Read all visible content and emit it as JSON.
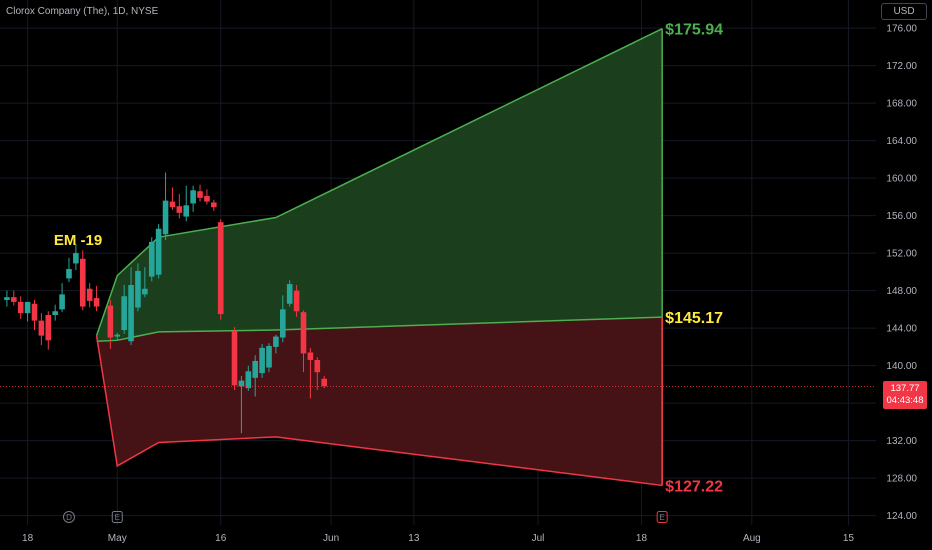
{
  "header": {
    "symbol_line": "Clorox Company (The), 1D, NYSE",
    "currency": "USD"
  },
  "price_tag": {
    "price": "137.77",
    "countdown": "04:43:48"
  },
  "colors": {
    "up": "#26a69a",
    "down": "#f23645",
    "upper_band_fill": "#1e4620",
    "upper_band_line": "#4caf50",
    "lower_band_fill": "#4c1418",
    "lower_band_line": "#f23645",
    "label_yellow": "#ffeb3b",
    "grid": "#161a25"
  },
  "chart_data": {
    "type": "candlestick",
    "y_axis": {
      "min": 123,
      "max": 179,
      "ticks": [
        "124.00",
        "128.00",
        "132.00",
        "136.00",
        "140.00",
        "144.00",
        "148.00",
        "152.00",
        "156.00",
        "160.00",
        "164.00",
        "168.00",
        "172.00",
        "176.00"
      ]
    },
    "x_axis": {
      "ticks": [
        {
          "label": "18",
          "day": -10
        },
        {
          "label": "May",
          "day": 3
        },
        {
          "label": "16",
          "day": 18
        },
        {
          "label": "Jun",
          "day": 34
        },
        {
          "label": "13",
          "day": 46
        },
        {
          "label": "Jul",
          "day": 64
        },
        {
          "label": "18",
          "day": 79
        },
        {
          "label": "Aug",
          "day": 95
        },
        {
          "label": "15",
          "day": 109
        }
      ],
      "day_range": [
        -14,
        113
      ]
    },
    "candles": [
      {
        "day": -13,
        "o": 147.0,
        "h": 148.0,
        "l": 146.3,
        "c": 147.3
      },
      {
        "day": -12,
        "o": 147.3,
        "h": 148.0,
        "l": 146.4,
        "c": 146.8
      },
      {
        "day": -11,
        "o": 146.8,
        "h": 147.4,
        "l": 145.0,
        "c": 145.6
      },
      {
        "day": -10,
        "o": 145.6,
        "h": 146.4,
        "l": 144.7,
        "c": 146.8
      },
      {
        "day": -9,
        "o": 146.6,
        "h": 147.0,
        "l": 143.8,
        "c": 144.8
      },
      {
        "day": -8,
        "o": 144.8,
        "h": 145.6,
        "l": 142.2,
        "c": 143.2
      },
      {
        "day": -7,
        "o": 145.4,
        "h": 145.8,
        "l": 141.7,
        "c": 142.7
      },
      {
        "day": -6,
        "o": 145.4,
        "h": 146.5,
        "l": 144.8,
        "c": 145.8
      },
      {
        "day": -5,
        "o": 146.0,
        "h": 148.8,
        "l": 145.7,
        "c": 147.6
      },
      {
        "day": -4,
        "o": 149.3,
        "h": 151.5,
        "l": 148.9,
        "c": 150.3
      },
      {
        "day": -3,
        "o": 150.9,
        "h": 153.0,
        "l": 150.2,
        "c": 152.0
      },
      {
        "day": -2,
        "o": 151.4,
        "h": 152.3,
        "l": 145.9,
        "c": 146.3
      },
      {
        "day": -1,
        "o": 148.2,
        "h": 148.8,
        "l": 146.2,
        "c": 146.9
      },
      {
        "day": 0,
        "o": 147.2,
        "h": 148.5,
        "l": 145.8,
        "c": 146.3
      },
      {
        "day": 2,
        "o": 146.4,
        "h": 147.0,
        "l": 141.8,
        "c": 143.0
      },
      {
        "day": 3,
        "o": 143.1,
        "h": 143.5,
        "l": 142.7,
        "c": 143.3
      },
      {
        "day": 4,
        "o": 143.8,
        "h": 148.6,
        "l": 143.4,
        "c": 147.4
      },
      {
        "day": 5,
        "o": 142.6,
        "h": 150.5,
        "l": 142.2,
        "c": 148.6
      },
      {
        "day": 6,
        "o": 146.2,
        "h": 150.9,
        "l": 145.8,
        "c": 150.1
      },
      {
        "day": 7,
        "o": 147.6,
        "h": 150.5,
        "l": 147.3,
        "c": 148.2
      },
      {
        "day": 8,
        "o": 149.5,
        "h": 153.7,
        "l": 149.0,
        "c": 153.2
      },
      {
        "day": 9,
        "o": 149.7,
        "h": 155.1,
        "l": 149.3,
        "c": 154.6
      },
      {
        "day": 10,
        "o": 154.0,
        "h": 160.6,
        "l": 153.4,
        "c": 157.6
      },
      {
        "day": 11,
        "o": 157.5,
        "h": 159.0,
        "l": 156.6,
        "c": 156.9
      },
      {
        "day": 12,
        "o": 157.0,
        "h": 158.3,
        "l": 155.7,
        "c": 156.3
      },
      {
        "day": 13,
        "o": 155.9,
        "h": 159.2,
        "l": 155.4,
        "c": 157.1
      },
      {
        "day": 14,
        "o": 157.3,
        "h": 159.2,
        "l": 156.4,
        "c": 158.7
      },
      {
        "day": 15,
        "o": 158.6,
        "h": 159.3,
        "l": 157.5,
        "c": 157.9
      },
      {
        "day": 16,
        "o": 158.1,
        "h": 158.8,
        "l": 157.2,
        "c": 157.5
      },
      {
        "day": 17,
        "o": 157.4,
        "h": 157.7,
        "l": 156.5,
        "c": 156.9
      },
      {
        "day": 18,
        "o": 155.3,
        "h": 155.6,
        "l": 144.9,
        "c": 145.5
      },
      {
        "day": 20,
        "o": 143.7,
        "h": 144.1,
        "l": 137.4,
        "c": 137.9
      },
      {
        "day": 21,
        "o": 137.8,
        "h": 138.9,
        "l": 132.8,
        "c": 138.4
      },
      {
        "day": 22,
        "o": 137.6,
        "h": 140.0,
        "l": 137.3,
        "c": 139.4
      },
      {
        "day": 23,
        "o": 138.7,
        "h": 141.1,
        "l": 136.7,
        "c": 140.5
      },
      {
        "day": 24,
        "o": 139.2,
        "h": 142.3,
        "l": 138.7,
        "c": 141.9
      },
      {
        "day": 25,
        "o": 139.8,
        "h": 142.4,
        "l": 139.3,
        "c": 142.1
      },
      {
        "day": 26,
        "o": 142.0,
        "h": 143.3,
        "l": 141.3,
        "c": 143.1
      },
      {
        "day": 27,
        "o": 143.0,
        "h": 147.5,
        "l": 142.5,
        "c": 146.0
      },
      {
        "day": 28,
        "o": 146.6,
        "h": 149.1,
        "l": 146.3,
        "c": 148.7
      },
      {
        "day": 29,
        "o": 148.0,
        "h": 148.6,
        "l": 145.2,
        "c": 145.8
      },
      {
        "day": 30,
        "o": 145.7,
        "h": 145.9,
        "l": 139.3,
        "c": 141.3
      },
      {
        "day": 31,
        "o": 141.4,
        "h": 141.9,
        "l": 136.5,
        "c": 140.6
      },
      {
        "day": 32,
        "o": 140.6,
        "h": 140.9,
        "l": 137.4,
        "c": 139.3
      },
      {
        "day": 33,
        "o": 138.6,
        "h": 138.9,
        "l": 137.6,
        "c": 137.8
      }
    ],
    "last_price": 137.77,
    "bands": {
      "upper": {
        "days": [
          0,
          3,
          9,
          26,
          82
        ],
        "values": [
          143.2,
          149.6,
          153.7,
          155.8,
          175.94
        ]
      },
      "mid": {
        "days": [
          0,
          3,
          9,
          26,
          82
        ],
        "values": [
          142.6,
          142.7,
          143.6,
          143.8,
          145.17
        ]
      },
      "lower": {
        "days": [
          0,
          3,
          9,
          26,
          82
        ],
        "values": [
          143.2,
          129.3,
          131.8,
          132.4,
          127.22
        ]
      }
    },
    "annotations": [
      {
        "text": "EM -19",
        "day": -3,
        "y": 153.5,
        "color": "yellow"
      },
      {
        "text": "$175.94",
        "day": 82,
        "y": 175.94,
        "color": "green"
      },
      {
        "text": "$145.17",
        "day": 82,
        "y": 145.17,
        "color": "yellow"
      },
      {
        "text": "$127.22",
        "day": 82,
        "y": 127.22,
        "color": "red"
      }
    ],
    "events": [
      {
        "kind": "dividend",
        "letter": "D",
        "day": -4
      },
      {
        "kind": "earnings",
        "letter": "E",
        "day": 3
      },
      {
        "kind": "earnings",
        "letter": "E",
        "day": 82
      }
    ]
  }
}
